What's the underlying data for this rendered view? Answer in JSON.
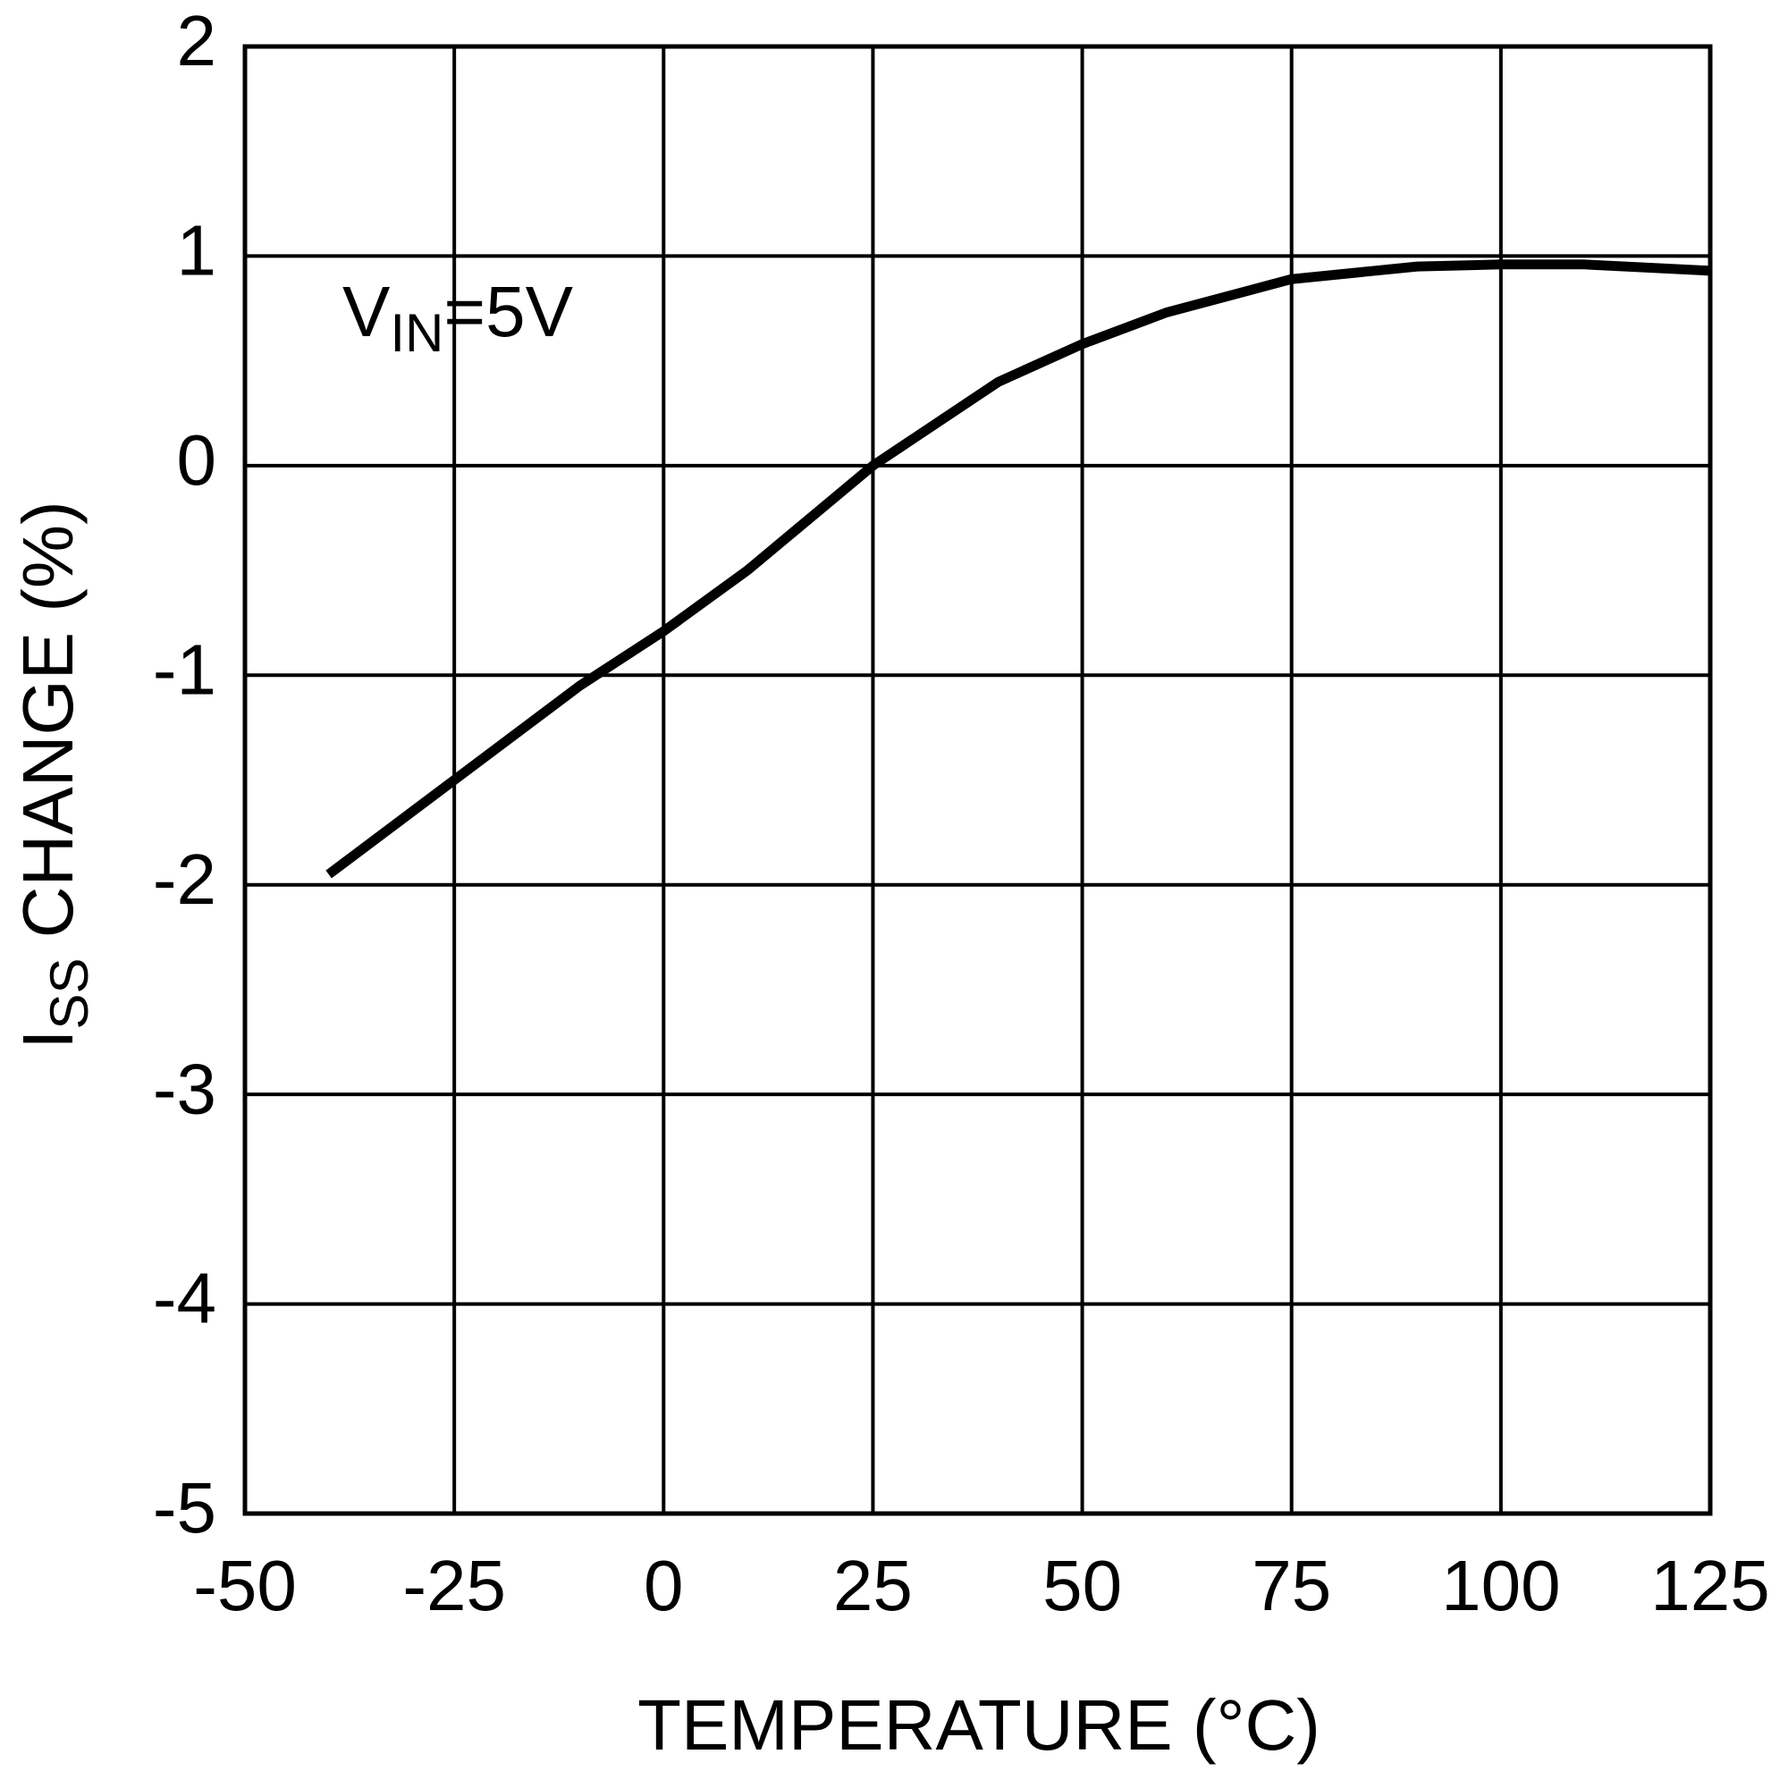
{
  "chart_data": {
    "type": "line",
    "xlabel": {
      "main": "TEMPERATURE (°C)"
    },
    "ylabel": {
      "main": "I",
      "sub": "SS",
      "rest": " CHANGE (%)"
    },
    "annotation": {
      "main": "V",
      "sub": "IN",
      "rest": "=5V"
    },
    "x": [
      -40,
      -25,
      -10,
      0,
      10,
      25,
      40,
      50,
      60,
      75,
      90,
      100,
      110,
      125
    ],
    "series": [
      {
        "color": "#000000",
        "values": [
          -1.95,
          -1.5,
          -1.05,
          -0.79,
          -0.5,
          0,
          0.4,
          0.58,
          0.73,
          0.89,
          0.95,
          0.96,
          0.96,
          0.93
        ]
      }
    ],
    "xlim": [
      -50,
      125
    ],
    "xticks": [
      -50,
      -25,
      0,
      25,
      50,
      75,
      100,
      125
    ],
    "ylim": [
      -5,
      2
    ],
    "yticks": [
      -5,
      -4,
      -3,
      -2,
      -1,
      0,
      1,
      2
    ],
    "grid": true
  }
}
